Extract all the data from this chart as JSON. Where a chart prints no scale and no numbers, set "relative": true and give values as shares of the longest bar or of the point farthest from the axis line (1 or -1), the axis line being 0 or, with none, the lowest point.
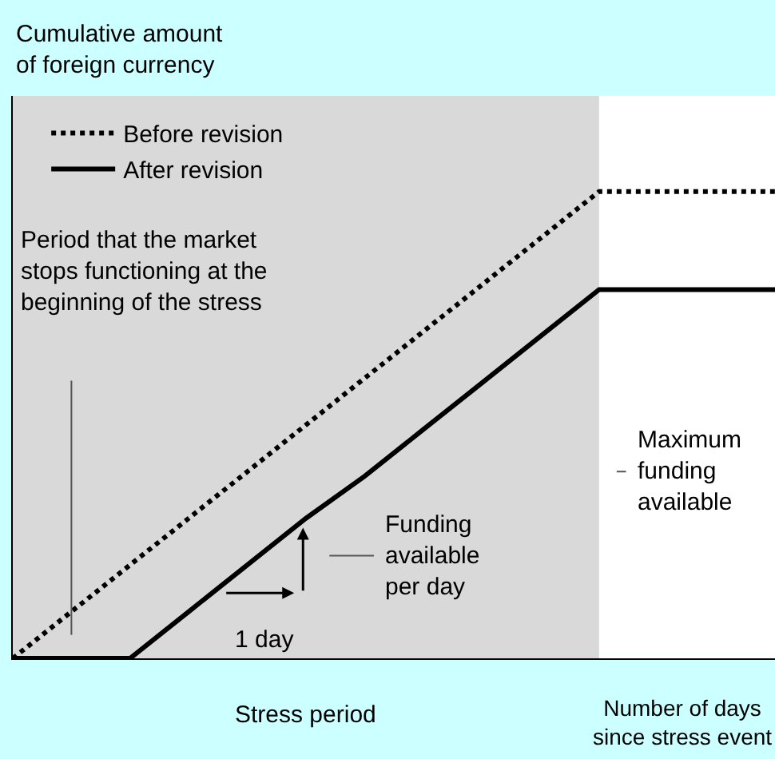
{
  "chart_data": {
    "type": "line",
    "relative": true,
    "ylabel": "Cumulative amount of foreign currency",
    "xlabel": "Number of days since stress event",
    "categories": [
      null,
      null,
      null,
      null,
      null,
      null,
      null,
      null,
      null,
      null,
      null,
      null,
      null,
      null
    ],
    "series": [
      {
        "name": "Before revision",
        "color": "#000000",
        "line_style": "dotted",
        "values": [
          0,
          0.1,
          0.2,
          0.3,
          0.4,
          0.5,
          0.6,
          0.7,
          0.8,
          0.9,
          1,
          1,
          1,
          1
        ]
      },
      {
        "name": "After revision",
        "color": "#000000",
        "line_style": "solid",
        "values": [
          0,
          0,
          0,
          0.1,
          0.2,
          0.3,
          0.39,
          0.49,
          0.59,
          0.69,
          0.79,
          0.79,
          0.79,
          0.79
        ]
      }
    ],
    "annotations": [
      "Stress period",
      "Period that the market stops functioning at the beginning of the stress",
      "Funding available per day",
      "1 day",
      "Maximum funding available"
    ],
    "legend": "top left",
    "grid": false,
    "marker": "none"
  }
}
